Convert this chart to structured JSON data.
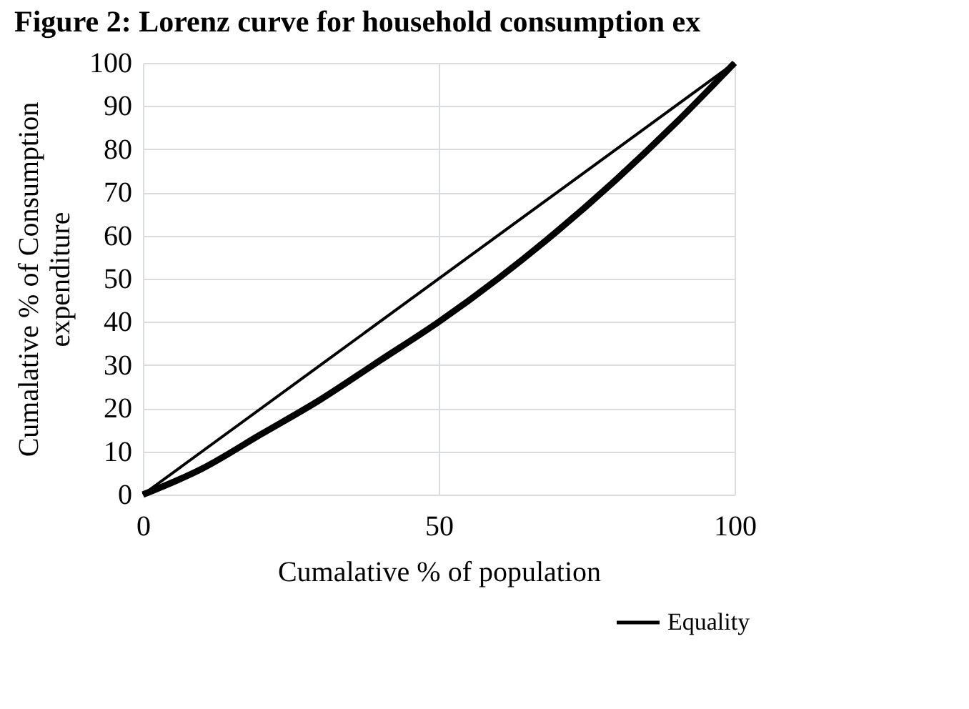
{
  "chart_data": {
    "type": "line",
    "title": "Figure 2: Lorenz curve for household consumption ex",
    "xlabel": "Cumalative % of population",
    "ylabel": "Cumalative  % of Consumption\nexpenditure",
    "series": [
      {
        "color": "#000000",
        "x": [
          0,
          10,
          20,
          30,
          40,
          50,
          60,
          70,
          80,
          90,
          100
        ],
        "values": [
          0,
          6,
          14,
          22,
          31,
          40,
          50,
          61,
          73,
          86,
          100
        ]
      },
      {
        "name": "Equality",
        "color": "#000000",
        "x": [
          0,
          100
        ],
        "values": [
          0,
          100
        ]
      }
    ],
    "xlim": [
      0,
      100
    ],
    "xticks": [
      0,
      50,
      100
    ],
    "ylim": [
      0,
      100
    ],
    "yticks": [
      0,
      10,
      20,
      30,
      40,
      50,
      60,
      70,
      80,
      90,
      100
    ],
    "grid": true,
    "legend": "bottom right",
    "marker": "none",
    "line_style": "solid"
  }
}
